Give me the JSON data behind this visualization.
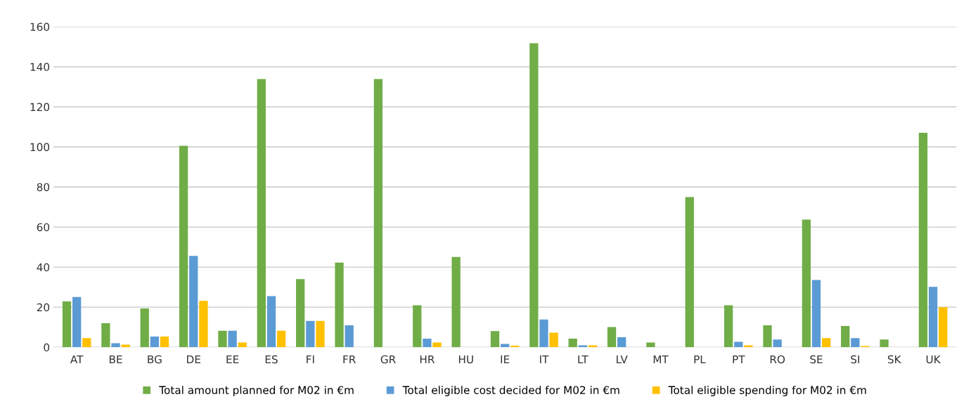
{
  "chart_data": {
    "type": "bar",
    "categories": [
      "AT",
      "BE",
      "BG",
      "DE",
      "EE",
      "ES",
      "FI",
      "FR",
      "GR",
      "HR",
      "HU",
      "IE",
      "IT",
      "LT",
      "LV",
      "MT",
      "PL",
      "PT",
      "RO",
      "SE",
      "SI",
      "SK",
      "UK"
    ],
    "series": [
      {
        "name": "Total amount planned for M02 in €m",
        "color": "#70ad47",
        "values": [
          22.9,
          12.0,
          19.4,
          100.6,
          8.3,
          133.9,
          34.0,
          42.3,
          133.9,
          21.0,
          45.1,
          8.1,
          151.8,
          4.3,
          10.1,
          2.4,
          75.0,
          21.0,
          11.0,
          63.8,
          10.6,
          3.9,
          107.1
        ]
      },
      {
        "name": "Total eligible cost decided for M02 in €m",
        "color": "#5b9bd5",
        "values": [
          25.1,
          2.0,
          5.4,
          45.6,
          8.3,
          25.5,
          13.2,
          11.0,
          null,
          4.3,
          null,
          1.7,
          13.9,
          1.0,
          5.0,
          null,
          null,
          2.7,
          3.9,
          33.6,
          4.6,
          null,
          30.2
        ]
      },
      {
        "name": "Total eligible spending for M02 in €m",
        "color": "#ffc000",
        "values": [
          4.6,
          1.3,
          5.4,
          23.2,
          2.4,
          8.3,
          13.2,
          null,
          null,
          2.4,
          null,
          0.8,
          7.3,
          1.0,
          null,
          null,
          null,
          1.0,
          null,
          4.6,
          0.6,
          null,
          20.0
        ]
      }
    ],
    "ylim": [
      0,
      160
    ],
    "yticks": [
      0,
      20,
      40,
      60,
      80,
      100,
      120,
      140,
      160
    ],
    "grid": "y",
    "legend": "bottom"
  }
}
